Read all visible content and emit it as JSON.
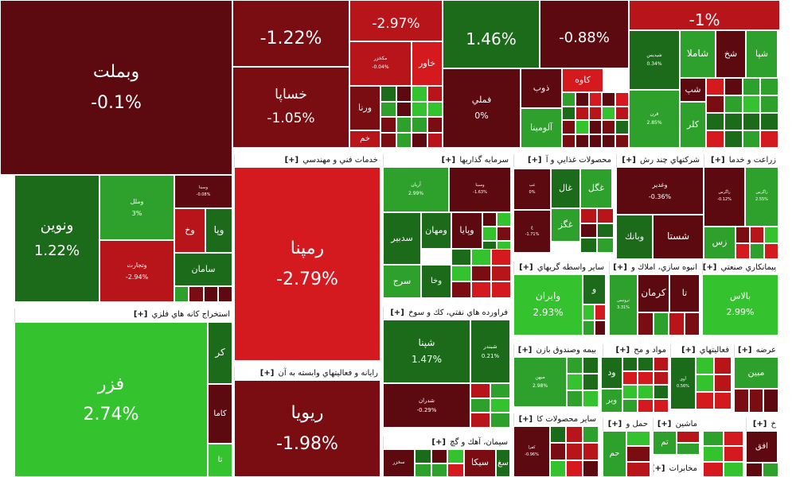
{
  "colors": {
    "dark_red": "#5c0a10",
    "red": "#b8151b",
    "bright_red": "#d4191f",
    "maroon": "#7a0d12",
    "dark_green": "#1b6b1b",
    "green": "#2ea02c",
    "bright_green": "#35c22f"
  },
  "plus": "[+]",
  "sectors": [
    {
      "id": "s1",
      "label": "خدمات فني و مهندسي"
    },
    {
      "id": "s2",
      "label": "سرمايه گذاريها"
    },
    {
      "id": "s3",
      "label": "محصولات غذايي و آ"
    },
    {
      "id": "s4",
      "label": "شركتهاي چند رش"
    },
    {
      "id": "s5",
      "label": "زراعت و خدما"
    },
    {
      "id": "s6",
      "label": "استخراج كانه هاي فلزي"
    },
    {
      "id": "s7",
      "label": "ساير واسطه گريهاي"
    },
    {
      "id": "s8",
      "label": "انبوه سازي، املاك و"
    },
    {
      "id": "s9",
      "label": "پيمانكاري صنعتي"
    },
    {
      "id": "s10",
      "label": "فراورده هاي نفتي، كك و سوخ"
    },
    {
      "id": "s11",
      "label": "رايانه و فعاليتهاي وابسته به آن"
    },
    {
      "id": "s12",
      "label": "بيمه وصندوق بازن"
    },
    {
      "id": "s13",
      "label": "مواد و مح"
    },
    {
      "id": "s14",
      "label": "فعاليتهاي"
    },
    {
      "id": "s15",
      "label": "عرضه"
    },
    {
      "id": "s16",
      "label": "ساير محصولات كا"
    },
    {
      "id": "s17",
      "label": "حمل و"
    },
    {
      "id": "s18",
      "label": "ماشين"
    },
    {
      "id": "s19",
      "label": "خ"
    },
    {
      "id": "s20",
      "label": "سيمان، آهك و گچ"
    },
    {
      "id": "s21",
      "label": "مخابرات"
    }
  ],
  "tiles": [
    {
      "id": "vbmellat",
      "name": "وبملت",
      "pct": "-0.1%"
    },
    {
      "id": "top_left_a",
      "name": "",
      "pct": "-1.22%"
    },
    {
      "id": "top_a",
      "name": "",
      "pct": "-2.97%"
    },
    {
      "id": "top_b",
      "name": "",
      "pct": "1.46%"
    },
    {
      "id": "foolad",
      "name": "",
      "pct": "-0.88%"
    },
    {
      "id": "top_c",
      "name": "",
      "pct": "-1%"
    },
    {
      "id": "khsapa",
      "name": "خساپا",
      "pct": "-1.05%"
    },
    {
      "id": "makhazan",
      "name": "مكخزر",
      "pct": "-0.04%"
    },
    {
      "id": "khavar",
      "name": "خاور",
      "pct": ""
    },
    {
      "id": "varena",
      "name": "ورنا",
      "pct": ""
    },
    {
      "id": "kham",
      "name": "خم",
      "pct": ""
    },
    {
      "id": "fameli",
      "name": "فملي",
      "pct": "0%"
    },
    {
      "id": "zob",
      "name": "ذوب",
      "pct": ""
    },
    {
      "id": "kaveh",
      "name": "كاوه",
      "pct": ""
    },
    {
      "id": "alumina",
      "name": "آلومينا",
      "pct": ""
    },
    {
      "id": "sheydis",
      "name": "شيديس",
      "pct": "0.34%"
    },
    {
      "id": "shamla",
      "name": "شاملا",
      "pct": ""
    },
    {
      "id": "shakh",
      "name": "شخ",
      "pct": ""
    },
    {
      "id": "shapa",
      "name": "شپا",
      "pct": ""
    },
    {
      "id": "shap",
      "name": "شپ",
      "pct": ""
    },
    {
      "id": "qeran",
      "name": "قرن",
      "pct": "2.85%"
    },
    {
      "id": "kelar",
      "name": "كلر",
      "pct": ""
    },
    {
      "id": "vanovin",
      "name": "ونوين",
      "pct": "1.22%"
    },
    {
      "id": "vamelal",
      "name": "وملل",
      "pct": "3%"
    },
    {
      "id": "vtejarat",
      "name": "وتجارت",
      "pct": "-2.94%"
    },
    {
      "id": "vsina",
      "name": "وسينا",
      "pct": "-0.08%"
    },
    {
      "id": "vapay",
      "name": "وپا",
      "pct": ""
    },
    {
      "id": "vokh",
      "name": "وخ",
      "pct": ""
    },
    {
      "id": "saman",
      "name": "سامان",
      "pct": ""
    },
    {
      "id": "rampana",
      "name": "رمپنا",
      "pct": "-2.79%"
    },
    {
      "id": "arian",
      "name": "آريان",
      "pct": "2.99%"
    },
    {
      "id": "vesina",
      "name": "وسينا",
      "pct": "-1.63%"
    },
    {
      "id": "vghadir",
      "name": "وغدير",
      "pct": ""
    },
    {
      "id": "vmahan",
      "name": "ومهان",
      "pct": ""
    },
    {
      "id": "sadbir",
      "name": "سدبير",
      "pct": ""
    },
    {
      "id": "vapaya",
      "name": "وپايا",
      "pct": ""
    },
    {
      "id": "serj",
      "name": "سرج",
      "pct": ""
    },
    {
      "id": "vkha",
      "name": "وخا",
      "pct": ""
    },
    {
      "id": "ghal",
      "name": "غال",
      "pct": ""
    },
    {
      "id": "ghgaz",
      "name": "غگز",
      "pct": ""
    },
    {
      "id": "ghgol",
      "name": "غگل",
      "pct": ""
    },
    {
      "id": "ghpina",
      "name": "غپ",
      "pct": "0%"
    },
    {
      "id": "ghpina2",
      "name": "غ",
      "pct": "-1.71%"
    },
    {
      "id": "vghadir2",
      "name": "وغدير",
      "pct": "-0.36%"
    },
    {
      "id": "shasta",
      "name": "شستا",
      "pct": ""
    },
    {
      "id": "vbank",
      "name": "وبانك",
      "pct": ""
    },
    {
      "id": "zagros",
      "name": "زاگرس",
      "pct": "-0.12%"
    },
    {
      "id": "zaram",
      "name": "زاگرس",
      "pct": "2.55%"
    },
    {
      "id": "zas",
      "name": "زس",
      "pct": ""
    },
    {
      "id": "fazar",
      "name": "فزر",
      "pct": "2.74%"
    },
    {
      "id": "kar",
      "name": "كر",
      "pct": ""
    },
    {
      "id": "kama",
      "name": "كاما",
      "pct": ""
    },
    {
      "id": "ta",
      "name": "تا",
      "pct": ""
    },
    {
      "id": "vairan",
      "name": "وايران",
      "pct": "2.93%"
    },
    {
      "id": "vo",
      "name": "و",
      "pct": ""
    },
    {
      "id": "tvaris",
      "name": "ثروتيس",
      "pct": "3.31%"
    },
    {
      "id": "kerman",
      "name": "كرمان",
      "pct": ""
    },
    {
      "id": "tha",
      "name": "تا",
      "pct": ""
    },
    {
      "id": "balas",
      "name": "بالاس",
      "pct": "2.99%"
    },
    {
      "id": "shpna",
      "name": "شپنا",
      "pct": "1.47%"
    },
    {
      "id": "shbandar",
      "name": "شبندر",
      "pct": "0.21%"
    },
    {
      "id": "shdaran",
      "name": "شدران",
      "pct": "-0.29%"
    },
    {
      "id": "rupaya",
      "name": "ريويا",
      "pct": "-1.98%"
    },
    {
      "id": "mahan",
      "name": "ميهن",
      "pct": "2.98%"
    },
    {
      "id": "vda",
      "name": "ود",
      "pct": ""
    },
    {
      "id": "vbr",
      "name": "وبر",
      "pct": ""
    },
    {
      "id": "avi",
      "name": "آوي",
      "pct": "0.56%"
    },
    {
      "id": "mabin",
      "name": "مبين",
      "pct": ""
    },
    {
      "id": "kafs",
      "name": "كفرا",
      "pct": "-0.96%"
    },
    {
      "id": "hm",
      "name": "حم",
      "pct": ""
    },
    {
      "id": "tm",
      "name": "تم",
      "pct": ""
    },
    {
      "id": "afgh",
      "name": "افق",
      "pct": ""
    },
    {
      "id": "sika",
      "name": "سيكا",
      "pct": ""
    },
    {
      "id": "sgh",
      "name": "سغ",
      "pct": ""
    },
    {
      "id": "sekhor",
      "name": "سخزر",
      "pct": ""
    }
  ]
}
